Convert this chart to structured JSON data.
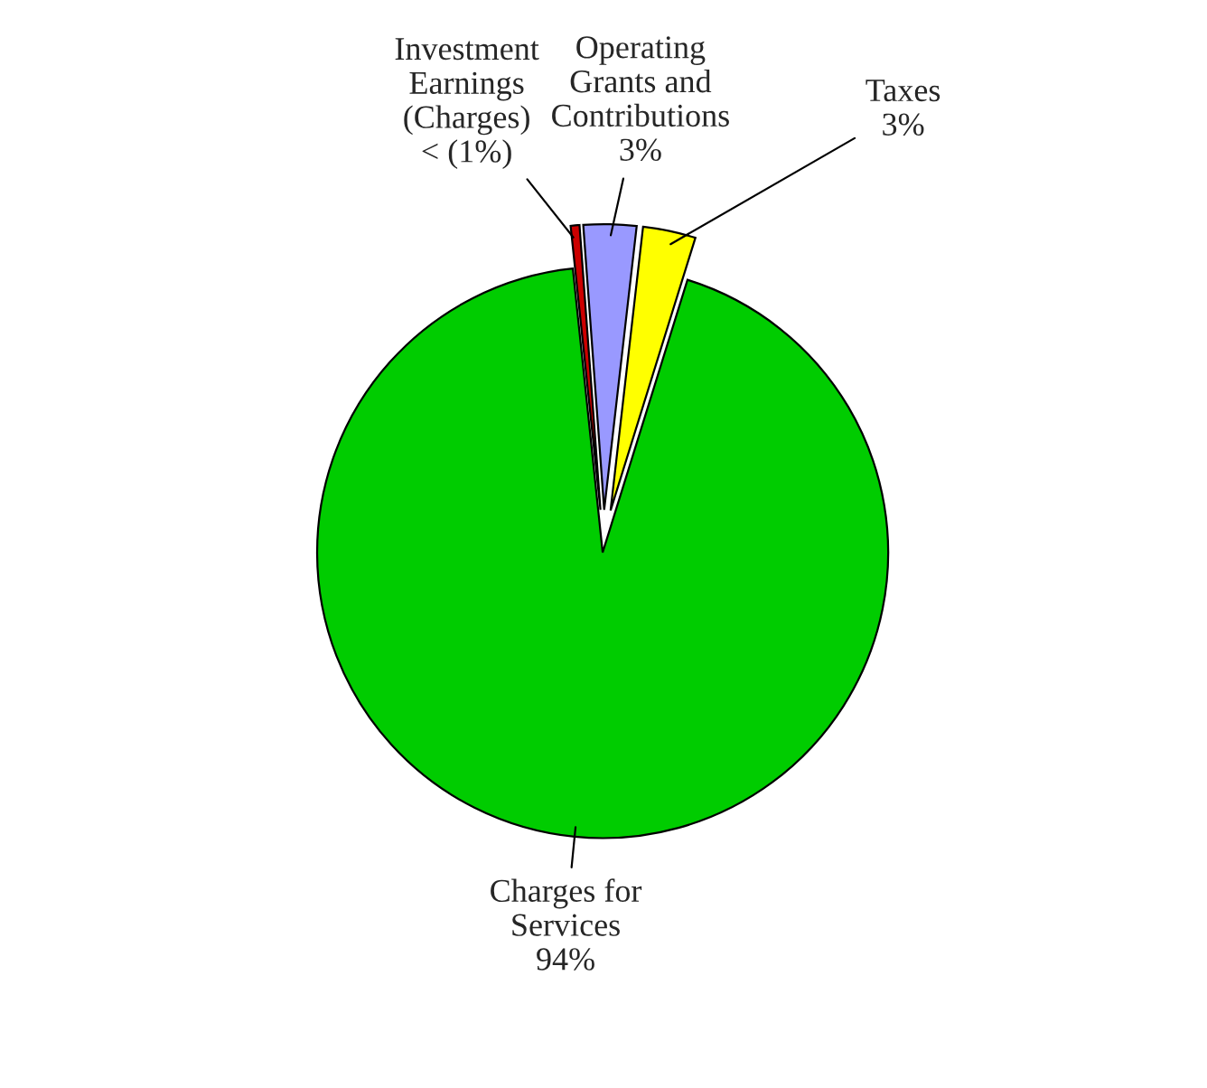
{
  "chart_data": {
    "type": "pie",
    "categories": [
      "Investment\nEarnings\n(Charges)",
      "Operating\nGrants and\nContributions",
      "Taxes",
      "Charges for\nServices"
    ],
    "values": [
      0.5,
      3,
      3,
      94
    ],
    "value_labels": [
      "< (1%)",
      "3%",
      "3%",
      "94%"
    ],
    "colors": [
      "#cc0000",
      "#9999ff",
      "#ffff00",
      "#00cc00"
    ],
    "legend": false
  }
}
